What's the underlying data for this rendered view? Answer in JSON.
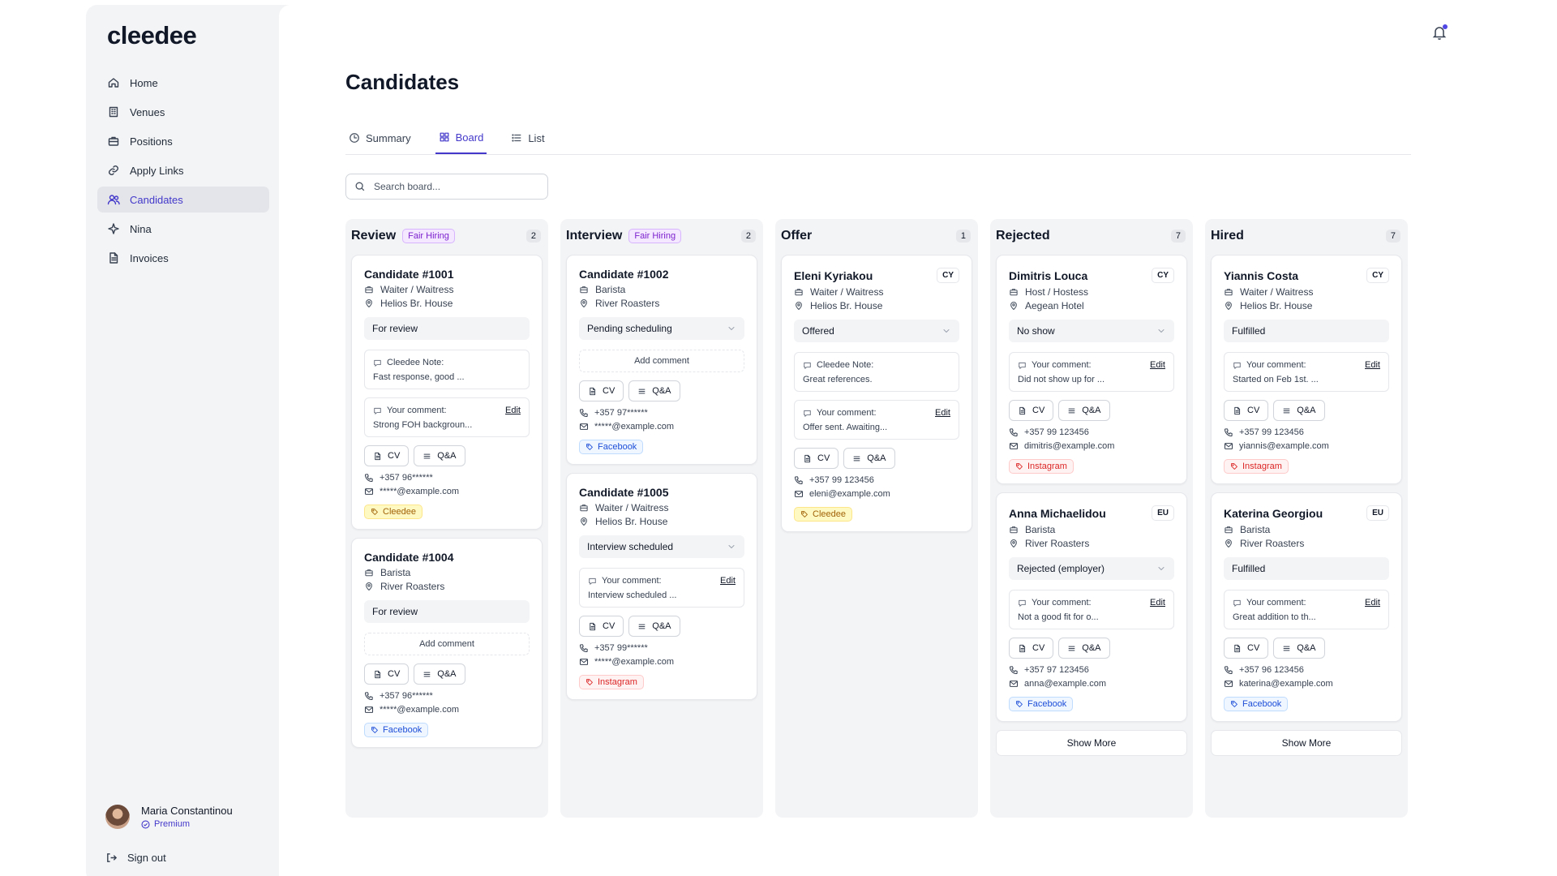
{
  "app": {
    "logo": "cleedee"
  },
  "sidebar": {
    "items": [
      {
        "label": "Home",
        "icon": "home-icon"
      },
      {
        "label": "Venues",
        "icon": "building-icon"
      },
      {
        "label": "Positions",
        "icon": "briefcase-icon"
      },
      {
        "label": "Apply Links",
        "icon": "link-icon"
      },
      {
        "label": "Candidates",
        "icon": "users-icon",
        "active": true
      },
      {
        "label": "Nina",
        "icon": "sparkle-icon"
      },
      {
        "label": "Invoices",
        "icon": "document-icon"
      }
    ],
    "user": {
      "name": "Maria Constantinou",
      "plan": "Premium"
    },
    "signout": "Sign out"
  },
  "main": {
    "title": "Candidates",
    "tabs": [
      {
        "label": "Summary",
        "icon": "clock-icon"
      },
      {
        "label": "Board",
        "icon": "grid-icon",
        "active": true
      },
      {
        "label": "List",
        "icon": "list-icon"
      }
    ],
    "search": {
      "placeholder": "Search board...",
      "value": ""
    }
  },
  "labels": {
    "cv": "CV",
    "qa": "Q&A",
    "edit": "Edit",
    "cleedee_note": "Cleedee Note:",
    "your_comment": "Your comment:",
    "add_comment": "Add comment",
    "show_more": "Show More"
  },
  "accent_color": "#4338ca",
  "board": [
    {
      "title": "Review",
      "badge": "Fair Hiring",
      "count": "2",
      "cards": [
        {
          "name": "Candidate #1001",
          "role": "Waiter / Waitress",
          "venue": "Helios Br. House",
          "status": "For review",
          "note": "Fast response, good ...",
          "comment": "Strong FOH backgroun...",
          "phone": "+357 96******",
          "email": "*****@example.com",
          "source": "Cleedee"
        },
        {
          "name": "Candidate #1004",
          "role": "Barista",
          "venue": "River Roasters",
          "status": "For review",
          "add_comment": true,
          "phone": "+357 96******",
          "email": "*****@example.com",
          "source": "Facebook"
        }
      ]
    },
    {
      "title": "Interview",
      "badge": "Fair Hiring",
      "count": "2",
      "cards": [
        {
          "name": "Candidate #1002",
          "role": "Barista",
          "venue": "River Roasters",
          "status": "Pending scheduling",
          "dropdown": true,
          "add_comment": true,
          "phone": "+357 97******",
          "email": "*****@example.com",
          "source": "Facebook"
        },
        {
          "name": "Candidate #1005",
          "role": "Waiter / Waitress",
          "venue": "Helios Br. House",
          "status": "Interview scheduled",
          "dropdown": true,
          "comment": "Interview scheduled ...",
          "phone": "+357 99******",
          "email": "*****@example.com",
          "source": "Instagram"
        }
      ]
    },
    {
      "title": "Offer",
      "badge": "",
      "count": "1",
      "cards": [
        {
          "name": "Eleni Kyriakou",
          "region": "CY",
          "role": "Waiter / Waitress",
          "venue": "Helios Br. House",
          "status": "Offered",
          "dropdown": true,
          "note": "Great references.",
          "comment": "Offer sent. Awaiting...",
          "phone": "+357 99 123456",
          "email": "eleni@example.com",
          "source": "Cleedee"
        }
      ]
    },
    {
      "title": "Rejected",
      "badge": "",
      "count": "7",
      "show_more": true,
      "cards": [
        {
          "name": "Dimitris Louca",
          "region": "CY",
          "role": "Host / Hostess",
          "venue": "Aegean Hotel",
          "status": "No show",
          "dropdown": true,
          "comment": "Did not show up for ...",
          "phone": "+357 99 123456",
          "email": "dimitris@example.com",
          "source": "Instagram"
        },
        {
          "name": "Anna Michaelidou",
          "region": "EU",
          "role": "Barista",
          "venue": "River Roasters",
          "status": "Rejected (employer)",
          "dropdown": true,
          "comment": "Not a good fit for o...",
          "phone": "+357 97 123456",
          "email": "anna@example.com",
          "source": "Facebook"
        }
      ]
    },
    {
      "title": "Hired",
      "badge": "",
      "count": "7",
      "show_more": true,
      "cards": [
        {
          "name": "Yiannis Costa",
          "region": "CY",
          "role": "Waiter / Waitress",
          "venue": "Helios Br. House",
          "status": "Fulfilled",
          "comment": "Started on Feb 1st. ...",
          "phone": "+357 99 123456",
          "email": "yiannis@example.com",
          "source": "Instagram"
        },
        {
          "name": "Katerina Georgiou",
          "region": "EU",
          "role": "Barista",
          "venue": "River Roasters",
          "status": "Fulfilled",
          "comment": "Great addition to th...",
          "phone": "+357 96 123456",
          "email": "katerina@example.com",
          "source": "Facebook"
        }
      ]
    }
  ]
}
